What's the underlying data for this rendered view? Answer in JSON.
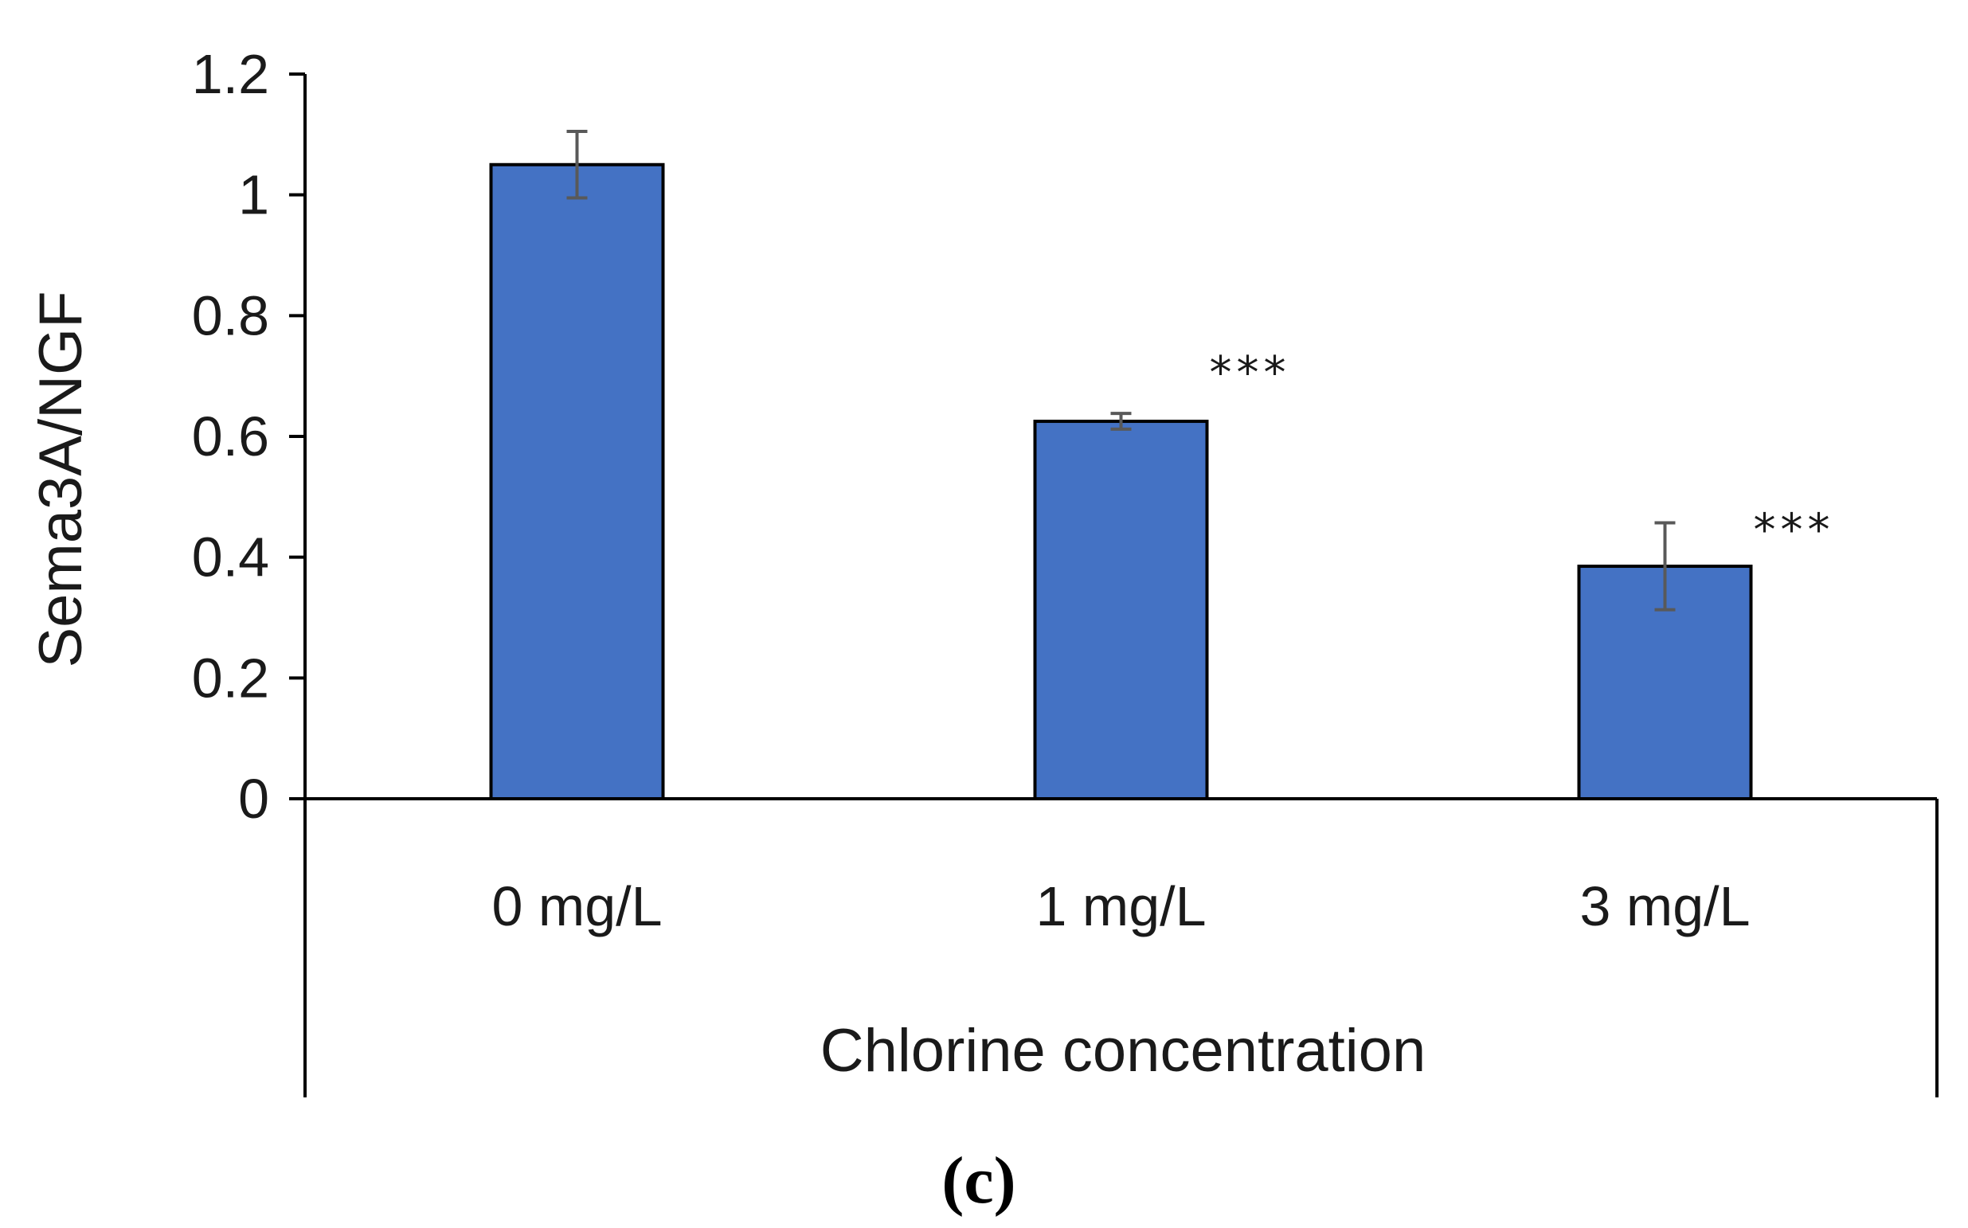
{
  "chart_data": {
    "type": "bar",
    "categories": [
      "0 mg/L",
      "1 mg/L",
      "3 mg/L"
    ],
    "values": [
      1.05,
      0.625,
      0.385
    ],
    "errors": [
      0.055,
      0.013,
      0.072
    ],
    "significance": [
      "",
      "***",
      "***"
    ],
    "xlabel": "Chlorine concentration",
    "ylabel": "Sema3A/NGF",
    "ylim": [
      0,
      1.2
    ],
    "yticks": [
      "0",
      "0.2",
      "0.4",
      "0.6",
      "0.8",
      "1",
      "1.2"
    ],
    "yticks_values": [
      0,
      0.2,
      0.4,
      0.6,
      0.8,
      1.0,
      1.2
    ],
    "bar_color": "#4472c4",
    "bar_edge_color": "#000000",
    "error_color": "#595959",
    "grid": false,
    "legend": "none"
  },
  "panel_label": "(c)"
}
